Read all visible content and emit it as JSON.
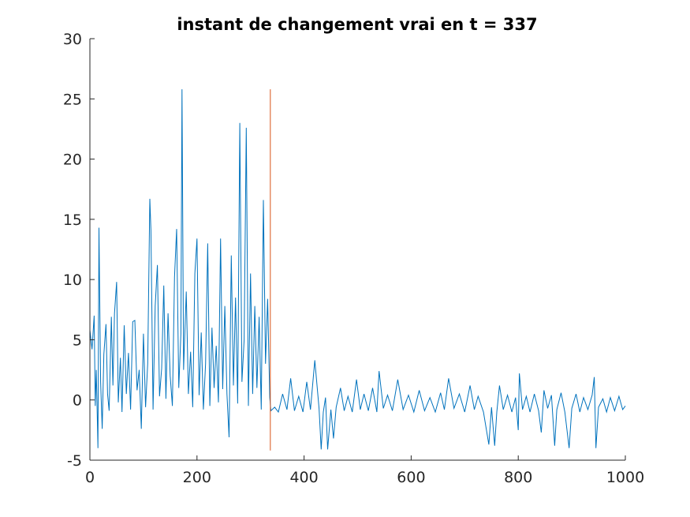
{
  "chart_data": {
    "type": "line",
    "title": "instant de changement vrai en t = 337",
    "xlabel": "",
    "ylabel": "",
    "xlim": [
      0,
      1000
    ],
    "ylim": [
      -5,
      30
    ],
    "xticks": [
      0,
      200,
      400,
      600,
      800,
      1000
    ],
    "yticks": [
      -5,
      0,
      5,
      10,
      15,
      20,
      25,
      30
    ],
    "xtick_labels": [
      "0",
      "200",
      "400",
      "600",
      "800",
      "1000"
    ],
    "ytick_labels": [
      "-5",
      "0",
      "5",
      "10",
      "15",
      "20",
      "25",
      "30"
    ],
    "grid": false,
    "legend": "none",
    "series": [
      {
        "color": "#0072BD",
        "points": [
          [
            0,
            5.8
          ],
          [
            4,
            4.2
          ],
          [
            8,
            7.0
          ],
          [
            10,
            -0.5
          ],
          [
            12,
            2.5
          ],
          [
            15,
            -4.0
          ],
          [
            17,
            14.3
          ],
          [
            20,
            1.5
          ],
          [
            23,
            -2.4
          ],
          [
            26,
            3.8
          ],
          [
            30,
            6.3
          ],
          [
            33,
            0.5
          ],
          [
            36,
            -0.9
          ],
          [
            40,
            6.9
          ],
          [
            43,
            1.2
          ],
          [
            46,
            7.2
          ],
          [
            50,
            9.8
          ],
          [
            53,
            -0.2
          ],
          [
            57,
            3.5
          ],
          [
            60,
            -1.0
          ],
          [
            64,
            6.2
          ],
          [
            68,
            0.5
          ],
          [
            72,
            3.9
          ],
          [
            76,
            -0.8
          ],
          [
            80,
            6.5
          ],
          [
            84,
            6.6
          ],
          [
            88,
            0.8
          ],
          [
            92,
            2.5
          ],
          [
            96,
            -2.4
          ],
          [
            100,
            5.5
          ],
          [
            104,
            -0.6
          ],
          [
            108,
            3.0
          ],
          [
            112,
            16.7
          ],
          [
            114,
            14.1
          ],
          [
            118,
            -0.8
          ],
          [
            122,
            7.8
          ],
          [
            126,
            11.2
          ],
          [
            130,
            0.3
          ],
          [
            134,
            2.6
          ],
          [
            138,
            9.5
          ],
          [
            142,
            0.1
          ],
          [
            146,
            7.2
          ],
          [
            150,
            2.0
          ],
          [
            154,
            -0.5
          ],
          [
            158,
            10.2
          ],
          [
            162,
            14.2
          ],
          [
            166,
            1.0
          ],
          [
            170,
            5.5
          ],
          [
            172,
            25.8
          ],
          [
            175,
            2.5
          ],
          [
            180,
            9.0
          ],
          [
            184,
            0.5
          ],
          [
            188,
            4.0
          ],
          [
            192,
            -0.6
          ],
          [
            196,
            10.5
          ],
          [
            200,
            13.4
          ],
          [
            204,
            0.4
          ],
          [
            208,
            5.6
          ],
          [
            212,
            -0.8
          ],
          [
            216,
            3.0
          ],
          [
            220,
            13.0
          ],
          [
            224,
            -0.5
          ],
          [
            228,
            6.0
          ],
          [
            232,
            1.0
          ],
          [
            236,
            4.5
          ],
          [
            240,
            -0.2
          ],
          [
            244,
            13.4
          ],
          [
            248,
            0.9
          ],
          [
            252,
            7.8
          ],
          [
            256,
            0.5
          ],
          [
            260,
            -3.1
          ],
          [
            264,
            12.0
          ],
          [
            268,
            1.2
          ],
          [
            272,
            8.5
          ],
          [
            276,
            -0.3
          ],
          [
            280,
            23.0
          ],
          [
            284,
            1.5
          ],
          [
            288,
            5.0
          ],
          [
            292,
            22.6
          ],
          [
            296,
            -0.5
          ],
          [
            300,
            10.5
          ],
          [
            304,
            0.5
          ],
          [
            308,
            7.8
          ],
          [
            312,
            1.0
          ],
          [
            316,
            6.9
          ],
          [
            320,
            -0.8
          ],
          [
            324,
            16.6
          ],
          [
            328,
            3.0
          ],
          [
            332,
            8.4
          ],
          [
            336,
            0.2
          ],
          [
            338,
            -0.9
          ],
          [
            345,
            -0.6
          ],
          [
            352,
            -1.0
          ],
          [
            360,
            0.5
          ],
          [
            368,
            -0.8
          ],
          [
            375,
            1.8
          ],
          [
            382,
            -0.9
          ],
          [
            390,
            0.3
          ],
          [
            398,
            -1.0
          ],
          [
            405,
            1.5
          ],
          [
            412,
            -0.8
          ],
          [
            420,
            3.3
          ],
          [
            428,
            -0.7
          ],
          [
            432,
            -4.1
          ],
          [
            436,
            -1.0
          ],
          [
            440,
            0.2
          ],
          [
            444,
            -4.1
          ],
          [
            450,
            -0.8
          ],
          [
            455,
            -3.2
          ],
          [
            460,
            -0.6
          ],
          [
            468,
            1.0
          ],
          [
            475,
            -0.9
          ],
          [
            482,
            0.3
          ],
          [
            490,
            -1.0
          ],
          [
            498,
            1.7
          ],
          [
            505,
            -0.8
          ],
          [
            512,
            0.5
          ],
          [
            520,
            -0.9
          ],
          [
            528,
            1.0
          ],
          [
            536,
            -1.0
          ],
          [
            540,
            2.4
          ],
          [
            548,
            -0.7
          ],
          [
            556,
            0.4
          ],
          [
            565,
            -0.9
          ],
          [
            575,
            1.7
          ],
          [
            585,
            -0.8
          ],
          [
            595,
            0.4
          ],
          [
            605,
            -1.0
          ],
          [
            615,
            0.8
          ],
          [
            625,
            -0.9
          ],
          [
            635,
            0.2
          ],
          [
            645,
            -1.0
          ],
          [
            655,
            0.6
          ],
          [
            662,
            -0.8
          ],
          [
            670,
            1.8
          ],
          [
            680,
            -0.7
          ],
          [
            690,
            0.5
          ],
          [
            700,
            -1.0
          ],
          [
            710,
            1.2
          ],
          [
            718,
            -0.8
          ],
          [
            725,
            0.3
          ],
          [
            735,
            -1.0
          ],
          [
            745,
            -3.7
          ],
          [
            750,
            -0.6
          ],
          [
            756,
            -3.8
          ],
          [
            760,
            -1.0
          ],
          [
            765,
            1.2
          ],
          [
            772,
            -0.8
          ],
          [
            780,
            0.4
          ],
          [
            788,
            -1.0
          ],
          [
            795,
            0.2
          ],
          [
            800,
            -2.5
          ],
          [
            802,
            2.2
          ],
          [
            808,
            -0.8
          ],
          [
            815,
            0.3
          ],
          [
            822,
            -1.0
          ],
          [
            830,
            0.5
          ],
          [
            838,
            -0.9
          ],
          [
            843,
            -2.7
          ],
          [
            848,
            0.8
          ],
          [
            855,
            -0.7
          ],
          [
            862,
            0.4
          ],
          [
            868,
            -3.8
          ],
          [
            872,
            -0.8
          ],
          [
            880,
            0.6
          ],
          [
            887,
            -1.0
          ],
          [
            895,
            -4.0
          ],
          [
            900,
            -0.7
          ],
          [
            908,
            0.5
          ],
          [
            915,
            -1.0
          ],
          [
            922,
            0.2
          ],
          [
            930,
            -0.8
          ],
          [
            938,
            0.4
          ],
          [
            942,
            1.9
          ],
          [
            945,
            -4.0
          ],
          [
            950,
            -0.6
          ],
          [
            958,
            0.1
          ],
          [
            965,
            -1.0
          ],
          [
            972,
            0.2
          ],
          [
            980,
            -0.9
          ],
          [
            988,
            0.3
          ],
          [
            995,
            -0.8
          ],
          [
            1000,
            -0.5
          ]
        ]
      }
    ],
    "annotations": [
      {
        "type": "vertical-line",
        "x": 337,
        "y_range": [
          -4.2,
          25.8
        ],
        "color": "#D95319"
      }
    ]
  }
}
